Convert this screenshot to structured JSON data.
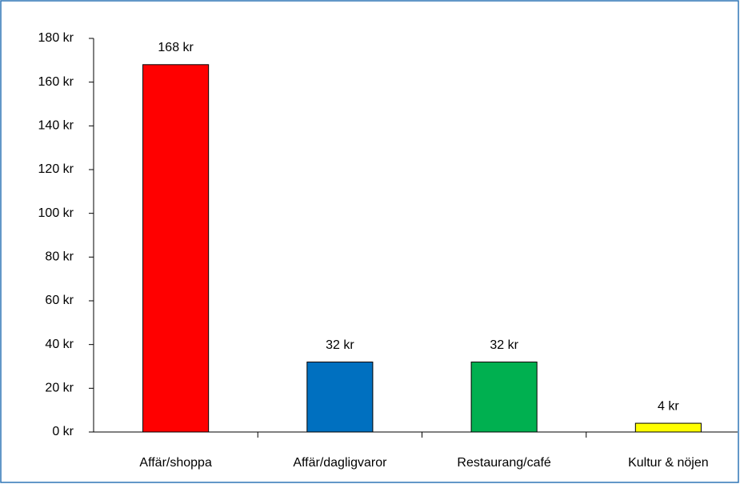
{
  "chart_data": {
    "type": "bar",
    "categories": [
      "Affär/shoppa",
      "Affär/dagligvaror",
      "Restaurang/café",
      "Kultur & nöjen"
    ],
    "values": [
      168,
      32,
      32,
      4
    ],
    "value_labels": [
      "168 kr",
      "32 kr",
      "32 kr",
      "4 kr"
    ],
    "colors": [
      "#ff0000",
      "#0070c0",
      "#00b050",
      "#ffff00"
    ],
    "ylim": [
      0,
      180
    ],
    "yticks": [
      {
        "value": 0,
        "label": "0 kr"
      },
      {
        "value": 20,
        "label": "20 kr"
      },
      {
        "value": 40,
        "label": "40 kr"
      },
      {
        "value": 60,
        "label": "60 kr"
      },
      {
        "value": 80,
        "label": "80 kr"
      },
      {
        "value": 100,
        "label": "100 kr"
      },
      {
        "value": 120,
        "label": "120 kr"
      },
      {
        "value": 140,
        "label": "140 kr"
      },
      {
        "value": 160,
        "label": "160 kr"
      },
      {
        "value": 180,
        "label": "180 kr"
      }
    ],
    "grid": false
  }
}
